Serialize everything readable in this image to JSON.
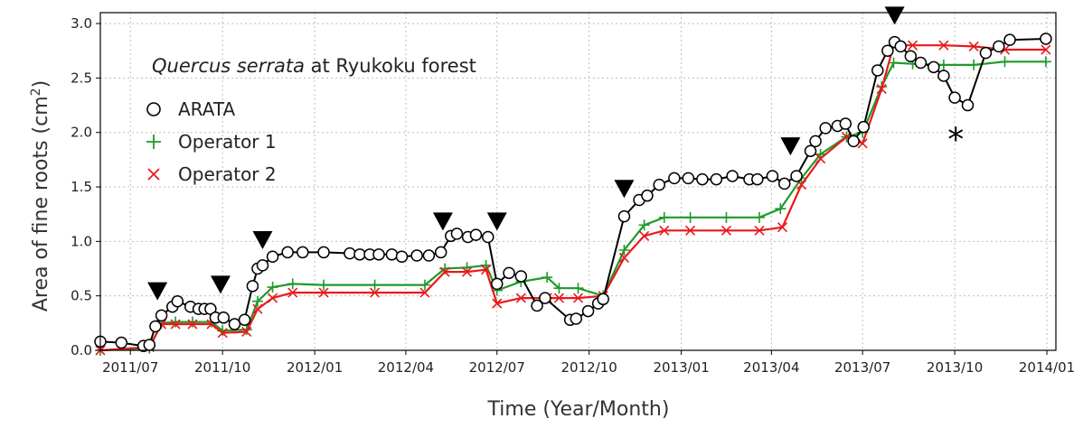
{
  "chart_data": {
    "type": "line",
    "title_italic": "Quercus serrata",
    "title_rest": " at Ryukoku forest",
    "xlabel": "Time (Year/Month)",
    "ylabel_main": "Area of fine roots (cm",
    "ylabel_sup": "2",
    "ylabel_end": ")",
    "xlim": [
      "2011-06-01",
      "2014-01-10"
    ],
    "ylim": [
      0,
      3.1
    ],
    "grid": true,
    "legend_position": "top-left",
    "x_ticks": [
      {
        "date": "2011-07-01",
        "label": "2011/07"
      },
      {
        "date": "2011-10-01",
        "label": "2011/10"
      },
      {
        "date": "2012-01-01",
        "label": "2012/01"
      },
      {
        "date": "2012-04-01",
        "label": "2012/04"
      },
      {
        "date": "2012-07-01",
        "label": "2012/07"
      },
      {
        "date": "2012-10-01",
        "label": "2012/10"
      },
      {
        "date": "2013-01-01",
        "label": "2013/01"
      },
      {
        "date": "2013-04-01",
        "label": "2013/04"
      },
      {
        "date": "2013-07-01",
        "label": "2013/07"
      },
      {
        "date": "2013-10-01",
        "label": "2013/10"
      },
      {
        "date": "2014-01-01",
        "label": "2014/01"
      }
    ],
    "y_ticks": [
      {
        "value": 0.0,
        "label": "0.0"
      },
      {
        "value": 0.5,
        "label": "0.5"
      },
      {
        "value": 1.0,
        "label": "1.0"
      },
      {
        "value": 1.5,
        "label": "1.5"
      },
      {
        "value": 2.0,
        "label": "2.0"
      },
      {
        "value": 2.5,
        "label": "2.5"
      },
      {
        "value": 3.0,
        "label": "3.0"
      }
    ],
    "series": [
      {
        "name": "ARATA",
        "marker": "circle",
        "color": "#000000",
        "points": [
          [
            "2011-06-01",
            0.08
          ],
          [
            "2011-06-22",
            0.07
          ],
          [
            "2011-07-14",
            0.04
          ],
          [
            "2011-07-20",
            0.05
          ],
          [
            "2011-07-26",
            0.22
          ],
          [
            "2011-08-01",
            0.32
          ],
          [
            "2011-08-12",
            0.4
          ],
          [
            "2011-08-17",
            0.45
          ],
          [
            "2011-08-30",
            0.4
          ],
          [
            "2011-09-07",
            0.38
          ],
          [
            "2011-09-13",
            0.38
          ],
          [
            "2011-09-19",
            0.38
          ],
          [
            "2011-09-24",
            0.3
          ],
          [
            "2011-10-02",
            0.3
          ],
          [
            "2011-10-13",
            0.24
          ],
          [
            "2011-10-23",
            0.28
          ],
          [
            "2011-10-31",
            0.59
          ],
          [
            "2011-11-05",
            0.75
          ],
          [
            "2011-11-10",
            0.78
          ],
          [
            "2011-11-20",
            0.86
          ],
          [
            "2011-12-05",
            0.9
          ],
          [
            "2011-12-20",
            0.9
          ],
          [
            "2012-01-10",
            0.9
          ],
          [
            "2012-02-05",
            0.89
          ],
          [
            "2012-02-15",
            0.88
          ],
          [
            "2012-02-25",
            0.88
          ],
          [
            "2012-03-05",
            0.88
          ],
          [
            "2012-03-18",
            0.88
          ],
          [
            "2012-03-28",
            0.86
          ],
          [
            "2012-04-12",
            0.87
          ],
          [
            "2012-04-24",
            0.87
          ],
          [
            "2012-05-06",
            0.9
          ],
          [
            "2012-05-16",
            1.05
          ],
          [
            "2012-05-22",
            1.07
          ],
          [
            "2012-06-02",
            1.04
          ],
          [
            "2012-06-10",
            1.06
          ],
          [
            "2012-06-22",
            1.04
          ],
          [
            "2012-07-01",
            0.61
          ],
          [
            "2012-07-13",
            0.71
          ],
          [
            "2012-07-25",
            0.68
          ],
          [
            "2012-08-10",
            0.41
          ],
          [
            "2012-08-18",
            0.48
          ],
          [
            "2012-09-12",
            0.28
          ],
          [
            "2012-09-18",
            0.29
          ],
          [
            "2012-09-30",
            0.36
          ],
          [
            "2012-10-10",
            0.43
          ],
          [
            "2012-10-15",
            0.47
          ],
          [
            "2012-11-05",
            1.23
          ],
          [
            "2012-11-20",
            1.38
          ],
          [
            "2012-11-28",
            1.42
          ],
          [
            "2012-12-10",
            1.52
          ],
          [
            "2012-12-25",
            1.58
          ],
          [
            "2013-01-08",
            1.58
          ],
          [
            "2013-01-22",
            1.57
          ],
          [
            "2013-02-05",
            1.57
          ],
          [
            "2013-02-21",
            1.6
          ],
          [
            "2013-03-10",
            1.57
          ],
          [
            "2013-03-18",
            1.57
          ],
          [
            "2013-04-02",
            1.6
          ],
          [
            "2013-04-14",
            1.53
          ],
          [
            "2013-04-26",
            1.6
          ],
          [
            "2013-05-10",
            1.83
          ],
          [
            "2013-05-15",
            1.92
          ],
          [
            "2013-05-25",
            2.04
          ],
          [
            "2013-06-06",
            2.06
          ],
          [
            "2013-06-14",
            2.08
          ],
          [
            "2013-06-22",
            1.92
          ],
          [
            "2013-07-02",
            2.05
          ],
          [
            "2013-07-16",
            2.57
          ],
          [
            "2013-07-26",
            2.75
          ],
          [
            "2013-08-02",
            2.83
          ],
          [
            "2013-08-08",
            2.79
          ],
          [
            "2013-08-18",
            2.7
          ],
          [
            "2013-08-28",
            2.64
          ],
          [
            "2013-09-10",
            2.6
          ],
          [
            "2013-09-20",
            2.52
          ],
          [
            "2013-10-01",
            2.32
          ],
          [
            "2013-10-14",
            2.25
          ],
          [
            "2013-11-01",
            2.73
          ],
          [
            "2013-11-14",
            2.79
          ],
          [
            "2013-11-25",
            2.85
          ],
          [
            "2013-12-31",
            2.86
          ]
        ]
      },
      {
        "name": "Operator 1",
        "marker": "plus",
        "color": "#1f9a2a",
        "points": [
          [
            "2011-06-01",
            0.0
          ],
          [
            "2011-07-20",
            0.02
          ],
          [
            "2011-08-01",
            0.25
          ],
          [
            "2011-08-15",
            0.26
          ],
          [
            "2011-09-01",
            0.26
          ],
          [
            "2011-09-20",
            0.26
          ],
          [
            "2011-10-01",
            0.18
          ],
          [
            "2011-10-25",
            0.19
          ],
          [
            "2011-11-05",
            0.45
          ],
          [
            "2011-11-20",
            0.58
          ],
          [
            "2011-12-10",
            0.61
          ],
          [
            "2012-01-10",
            0.6
          ],
          [
            "2012-03-01",
            0.6
          ],
          [
            "2012-04-20",
            0.6
          ],
          [
            "2012-05-10",
            0.75
          ],
          [
            "2012-06-01",
            0.76
          ],
          [
            "2012-06-20",
            0.78
          ],
          [
            "2012-07-01",
            0.55
          ],
          [
            "2012-07-25",
            0.63
          ],
          [
            "2012-08-20",
            0.67
          ],
          [
            "2012-09-01",
            0.57
          ],
          [
            "2012-09-20",
            0.57
          ],
          [
            "2012-10-15",
            0.5
          ],
          [
            "2012-11-05",
            0.92
          ],
          [
            "2012-11-25",
            1.15
          ],
          [
            "2012-12-15",
            1.22
          ],
          [
            "2013-01-10",
            1.22
          ],
          [
            "2013-02-15",
            1.22
          ],
          [
            "2013-03-20",
            1.22
          ],
          [
            "2013-04-10",
            1.3
          ],
          [
            "2013-05-01",
            1.58
          ],
          [
            "2013-05-20",
            1.8
          ],
          [
            "2013-06-15",
            1.96
          ],
          [
            "2013-07-01",
            2.0
          ],
          [
            "2013-07-20",
            2.42
          ],
          [
            "2013-08-01",
            2.64
          ],
          [
            "2013-08-20",
            2.63
          ],
          [
            "2013-09-20",
            2.62
          ],
          [
            "2013-10-20",
            2.62
          ],
          [
            "2013-11-20",
            2.65
          ],
          [
            "2013-12-31",
            2.65
          ]
        ]
      },
      {
        "name": "Operator 2",
        "marker": "x",
        "color": "#e8191c",
        "points": [
          [
            "2011-06-01",
            0.0
          ],
          [
            "2011-07-20",
            0.03
          ],
          [
            "2011-08-01",
            0.24
          ],
          [
            "2011-08-15",
            0.24
          ],
          [
            "2011-09-01",
            0.24
          ],
          [
            "2011-09-20",
            0.24
          ],
          [
            "2011-10-01",
            0.16
          ],
          [
            "2011-10-25",
            0.17
          ],
          [
            "2011-11-05",
            0.38
          ],
          [
            "2011-11-20",
            0.48
          ],
          [
            "2011-12-10",
            0.53
          ],
          [
            "2012-01-10",
            0.53
          ],
          [
            "2012-03-01",
            0.53
          ],
          [
            "2012-04-20",
            0.53
          ],
          [
            "2012-05-10",
            0.72
          ],
          [
            "2012-06-01",
            0.72
          ],
          [
            "2012-06-20",
            0.74
          ],
          [
            "2012-07-01",
            0.43
          ],
          [
            "2012-07-25",
            0.48
          ],
          [
            "2012-08-20",
            0.48
          ],
          [
            "2012-09-01",
            0.48
          ],
          [
            "2012-09-20",
            0.48
          ],
          [
            "2012-10-15",
            0.5
          ],
          [
            "2012-11-05",
            0.85
          ],
          [
            "2012-11-25",
            1.05
          ],
          [
            "2012-12-15",
            1.1
          ],
          [
            "2013-01-10",
            1.1
          ],
          [
            "2013-02-15",
            1.1
          ],
          [
            "2013-03-20",
            1.1
          ],
          [
            "2013-04-12",
            1.13
          ],
          [
            "2013-05-01",
            1.52
          ],
          [
            "2013-05-20",
            1.76
          ],
          [
            "2013-06-15",
            1.96
          ],
          [
            "2013-07-01",
            1.9
          ],
          [
            "2013-07-20",
            2.4
          ],
          [
            "2013-08-01",
            2.8
          ],
          [
            "2013-08-20",
            2.8
          ],
          [
            "2013-09-20",
            2.8
          ],
          [
            "2013-10-20",
            2.79
          ],
          [
            "2013-11-20",
            2.76
          ],
          [
            "2013-12-31",
            2.76
          ]
        ]
      }
    ],
    "annotations": {
      "triangles": [
        [
          "2011-07-28",
          0.55
        ],
        [
          "2011-09-29",
          0.61
        ],
        [
          "2011-11-10",
          1.02
        ],
        [
          "2012-05-08",
          1.19
        ],
        [
          "2012-07-01",
          1.19
        ],
        [
          "2012-11-05",
          1.49
        ],
        [
          "2013-04-20",
          1.88
        ],
        [
          "2013-08-02",
          3.08
        ]
      ],
      "asterisk": {
        "date": "2013-10-02",
        "value": 1.95,
        "text": "*"
      }
    }
  }
}
